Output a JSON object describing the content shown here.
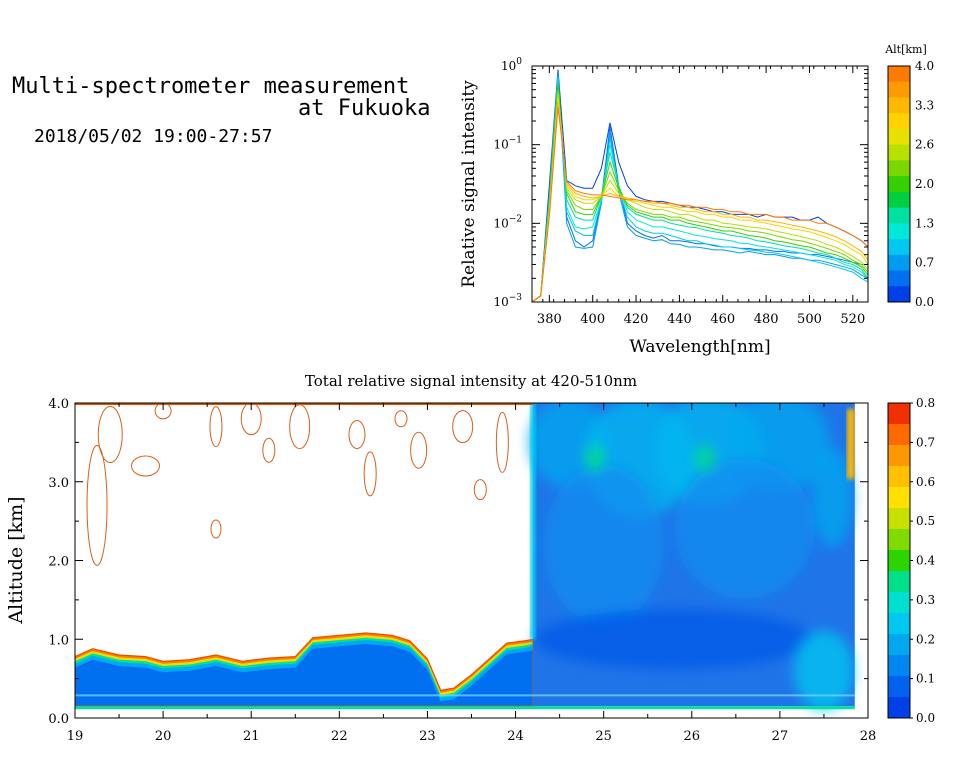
{
  "header": {
    "title_line1": "Multi-spectrometer measurement",
    "title_line2": "at Fukuoka",
    "date_range": "2018/05/02 19:00-27:57"
  },
  "chart_data": [
    {
      "type": "line",
      "title": "",
      "xlabel": "Wavelength[nm]",
      "ylabel": "Relative signal intensity",
      "xlim": [
        372,
        527
      ],
      "ylim": [
        0.001,
        1
      ],
      "y_scale": "log",
      "x_ticks": [
        380,
        400,
        420,
        440,
        460,
        480,
        500,
        520
      ],
      "y_ticks": [
        {
          "value": 1,
          "base": "10",
          "exp": "0"
        },
        {
          "value": 0.1,
          "base": "10",
          "exp": "−1"
        },
        {
          "value": 0.01,
          "base": "10",
          "exp": "−2"
        },
        {
          "value": 0.001,
          "base": "10",
          "exp": "−3"
        }
      ],
      "colorbar": {
        "label": "Alt[km]",
        "ticks": [
          "4.0",
          "3.3",
          "2.6",
          "2.0",
          "1.3",
          "0.7",
          "0.0"
        ],
        "range": [
          0,
          4
        ],
        "colors": [
          "#ff7a00",
          "#ff9a00",
          "#ffb800",
          "#ffd200",
          "#e8e000",
          "#b8e000",
          "#7ad800",
          "#34d000",
          "#00d040",
          "#00e0a0",
          "#00e8d8",
          "#00c8f0",
          "#009cf0",
          "#0070f0",
          "#0040e8"
        ]
      },
      "x": [
        372,
        376,
        380,
        384,
        388,
        392,
        396,
        400,
        404,
        408,
        412,
        416,
        420,
        424,
        428,
        432,
        436,
        440,
        444,
        448,
        452,
        456,
        460,
        464,
        468,
        472,
        476,
        480,
        484,
        488,
        492,
        496,
        500,
        504,
        508,
        512,
        516,
        520,
        524,
        527
      ],
      "series": [
        {
          "alt": 0.0,
          "color": "#0040e8",
          "values": [
            0.001,
            0.0012,
            0.03,
            0.9,
            0.035,
            0.03,
            0.028,
            0.028,
            0.05,
            0.19,
            0.06,
            0.03,
            0.022,
            0.02,
            0.019,
            0.019,
            0.018,
            0.017,
            0.016,
            0.016,
            0.015,
            0.014,
            0.014,
            0.013,
            0.013,
            0.013,
            0.012,
            0.013,
            0.012,
            0.012,
            0.012,
            0.011,
            0.011,
            0.012,
            0.01,
            0.009,
            0.008,
            0.007,
            0.006,
            0.005
          ]
        },
        {
          "alt": 0.3,
          "color": "#0070f0",
          "values": [
            0.001,
            0.0012,
            0.025,
            0.85,
            0.012,
            0.006,
            0.005,
            0.006,
            0.02,
            0.17,
            0.03,
            0.01,
            0.008,
            0.007,
            0.0065,
            0.007,
            0.006,
            0.006,
            0.0058,
            0.0055,
            0.0055,
            0.0052,
            0.005,
            0.005,
            0.0048,
            0.0048,
            0.0046,
            0.0046,
            0.0044,
            0.0044,
            0.0042,
            0.0042,
            0.004,
            0.004,
            0.0038,
            0.0036,
            0.0034,
            0.0032,
            0.003,
            0.003
          ]
        },
        {
          "alt": 0.7,
          "color": "#009cf0",
          "values": [
            0.001,
            0.0012,
            0.022,
            0.8,
            0.01,
            0.005,
            0.0048,
            0.005,
            0.018,
            0.14,
            0.025,
            0.009,
            0.007,
            0.0065,
            0.006,
            0.0062,
            0.0055,
            0.0054,
            0.005,
            0.005,
            0.0048,
            0.0046,
            0.0046,
            0.0044,
            0.0042,
            0.0044,
            0.0042,
            0.004,
            0.004,
            0.0038,
            0.0036,
            0.0036,
            0.0034,
            0.0034,
            0.0032,
            0.003,
            0.0028,
            0.0026,
            0.0022,
            0.002
          ]
        },
        {
          "alt": 1.0,
          "color": "#00c8f0",
          "values": [
            0.001,
            0.0012,
            0.02,
            0.75,
            0.014,
            0.008,
            0.007,
            0.007,
            0.02,
            0.12,
            0.028,
            0.012,
            0.009,
            0.008,
            0.0075,
            0.0075,
            0.007,
            0.0065,
            0.006,
            0.006,
            0.0055,
            0.0053,
            0.005,
            0.005,
            0.0048,
            0.0046,
            0.0045,
            0.0043,
            0.0042,
            0.004,
            0.0038,
            0.0036,
            0.0034,
            0.0032,
            0.003,
            0.0028,
            0.0026,
            0.0024,
            0.002,
            0.0018
          ]
        },
        {
          "alt": 1.3,
          "color": "#00e8d8",
          "values": [
            0.001,
            0.0012,
            0.02,
            0.7,
            0.016,
            0.009,
            0.0085,
            0.009,
            0.02,
            0.1,
            0.03,
            0.014,
            0.011,
            0.01,
            0.009,
            0.009,
            0.0085,
            0.008,
            0.0075,
            0.007,
            0.0068,
            0.0064,
            0.0062,
            0.006,
            0.0056,
            0.0055,
            0.0052,
            0.005,
            0.0048,
            0.0046,
            0.0044,
            0.0042,
            0.004,
            0.0038,
            0.0036,
            0.0034,
            0.003,
            0.0028,
            0.0024,
            0.002
          ]
        },
        {
          "alt": 1.7,
          "color": "#00e0a0",
          "values": [
            0.001,
            0.0012,
            0.018,
            0.65,
            0.02,
            0.012,
            0.011,
            0.011,
            0.022,
            0.08,
            0.03,
            0.016,
            0.013,
            0.012,
            0.011,
            0.011,
            0.01,
            0.0095,
            0.009,
            0.0088,
            0.0082,
            0.0078,
            0.0075,
            0.007,
            0.0068,
            0.0065,
            0.006,
            0.0058,
            0.0055,
            0.0052,
            0.005,
            0.0048,
            0.0045,
            0.0042,
            0.004,
            0.0036,
            0.0032,
            0.003,
            0.0026,
            0.002
          ]
        },
        {
          "alt": 2.0,
          "color": "#34d000",
          "values": [
            0.001,
            0.0012,
            0.018,
            0.6,
            0.024,
            0.014,
            0.013,
            0.013,
            0.022,
            0.06,
            0.028,
            0.017,
            0.014,
            0.013,
            0.012,
            0.012,
            0.011,
            0.011,
            0.01,
            0.0095,
            0.009,
            0.0085,
            0.008,
            0.008,
            0.0075,
            0.007,
            0.0068,
            0.0065,
            0.006,
            0.0058,
            0.0055,
            0.0052,
            0.005,
            0.0046,
            0.0042,
            0.004,
            0.0036,
            0.0032,
            0.0028,
            0.0022
          ]
        },
        {
          "alt": 2.3,
          "color": "#7ad800",
          "values": [
            0.001,
            0.0012,
            0.016,
            0.5,
            0.026,
            0.017,
            0.015,
            0.015,
            0.022,
            0.045,
            0.026,
            0.018,
            0.015,
            0.014,
            0.013,
            0.013,
            0.012,
            0.012,
            0.011,
            0.0105,
            0.01,
            0.0095,
            0.009,
            0.0088,
            0.0085,
            0.008,
            0.0078,
            0.0075,
            0.007,
            0.0066,
            0.0062,
            0.006,
            0.0056,
            0.0052,
            0.0048,
            0.0044,
            0.004,
            0.0034,
            0.003,
            0.0024
          ]
        },
        {
          "alt": 2.6,
          "color": "#b8e000",
          "values": [
            0.001,
            0.0012,
            0.015,
            0.45,
            0.028,
            0.02,
            0.018,
            0.018,
            0.022,
            0.035,
            0.024,
            0.02,
            0.018,
            0.016,
            0.015,
            0.015,
            0.014,
            0.013,
            0.013,
            0.012,
            0.011,
            0.011,
            0.01,
            0.0098,
            0.0094,
            0.009,
            0.0088,
            0.0085,
            0.008,
            0.0076,
            0.0072,
            0.0068,
            0.0064,
            0.006,
            0.0054,
            0.005,
            0.0044,
            0.0038,
            0.0032,
            0.0026
          ]
        },
        {
          "alt": 3.0,
          "color": "#ffd200",
          "values": [
            0.001,
            0.0012,
            0.014,
            0.4,
            0.03,
            0.022,
            0.02,
            0.02,
            0.022,
            0.028,
            0.022,
            0.02,
            0.019,
            0.018,
            0.017,
            0.016,
            0.016,
            0.015,
            0.014,
            0.014,
            0.013,
            0.013,
            0.012,
            0.012,
            0.011,
            0.011,
            0.0105,
            0.01,
            0.0095,
            0.009,
            0.0085,
            0.0082,
            0.0078,
            0.0072,
            0.0066,
            0.006,
            0.0054,
            0.0046,
            0.004,
            0.003
          ]
        },
        {
          "alt": 3.3,
          "color": "#ffb800",
          "values": [
            0.001,
            0.0012,
            0.013,
            0.35,
            0.032,
            0.024,
            0.022,
            0.021,
            0.022,
            0.024,
            0.022,
            0.021,
            0.02,
            0.019,
            0.018,
            0.018,
            0.017,
            0.016,
            0.016,
            0.015,
            0.014,
            0.014,
            0.013,
            0.013,
            0.012,
            0.012,
            0.011,
            0.011,
            0.0105,
            0.01,
            0.0095,
            0.009,
            0.0085,
            0.008,
            0.0074,
            0.0068,
            0.006,
            0.0052,
            0.0044,
            0.0034
          ]
        },
        {
          "alt": 4.0,
          "color": "#ff7a00",
          "values": [
            0.001,
            0.0012,
            0.012,
            0.3,
            0.034,
            0.026,
            0.024,
            0.023,
            0.023,
            0.022,
            0.021,
            0.02,
            0.02,
            0.019,
            0.019,
            0.018,
            0.018,
            0.017,
            0.017,
            0.016,
            0.016,
            0.015,
            0.015,
            0.014,
            0.014,
            0.013,
            0.013,
            0.013,
            0.012,
            0.012,
            0.011,
            0.011,
            0.011,
            0.01,
            0.01,
            0.009,
            0.008,
            0.007,
            0.006,
            0.005
          ]
        }
      ]
    },
    {
      "type": "heatmap",
      "title": "Total relative signal intensity at 420-510nm",
      "xlabel": "",
      "ylabel": "Altitude [km]",
      "xlim": [
        19,
        28
      ],
      "ylim": [
        0,
        4
      ],
      "x_ticks": [
        19,
        20,
        21,
        22,
        23,
        24,
        25,
        26,
        27,
        28
      ],
      "y_ticks": [
        "0.0",
        "1.0",
        "2.0",
        "3.0",
        "4.0"
      ],
      "cloud_base": {
        "x": [
          19.0,
          19.2,
          19.5,
          19.8,
          20.0,
          20.3,
          20.6,
          20.9,
          21.2,
          21.5,
          21.7,
          22.0,
          22.3,
          22.6,
          22.8,
          23.0,
          23.15,
          23.3,
          23.5,
          23.7,
          23.9,
          24.1,
          24.2
        ],
        "y": [
          0.78,
          0.88,
          0.8,
          0.78,
          0.72,
          0.74,
          0.8,
          0.72,
          0.76,
          0.78,
          1.02,
          1.05,
          1.08,
          1.05,
          0.98,
          0.75,
          0.35,
          0.38,
          0.55,
          0.75,
          0.95,
          0.98,
          1.0
        ]
      },
      "colorbar": {
        "label": "",
        "ticks": [
          "0.8",
          "0.7",
          "0.6",
          "0.5",
          "0.4",
          "0.3",
          "0.2",
          "0.1",
          "0.0"
        ],
        "range": [
          0,
          0.8
        ],
        "colors": [
          "#0040e8",
          "#0062ee",
          "#0086f0",
          "#00a8f0",
          "#00c8f0",
          "#00e0d0",
          "#00e08a",
          "#2ed400",
          "#80dc00",
          "#c8e000",
          "#ffe000",
          "#ffc000",
          "#ff9800",
          "#ff6a00",
          "#f03000"
        ]
      }
    }
  ]
}
